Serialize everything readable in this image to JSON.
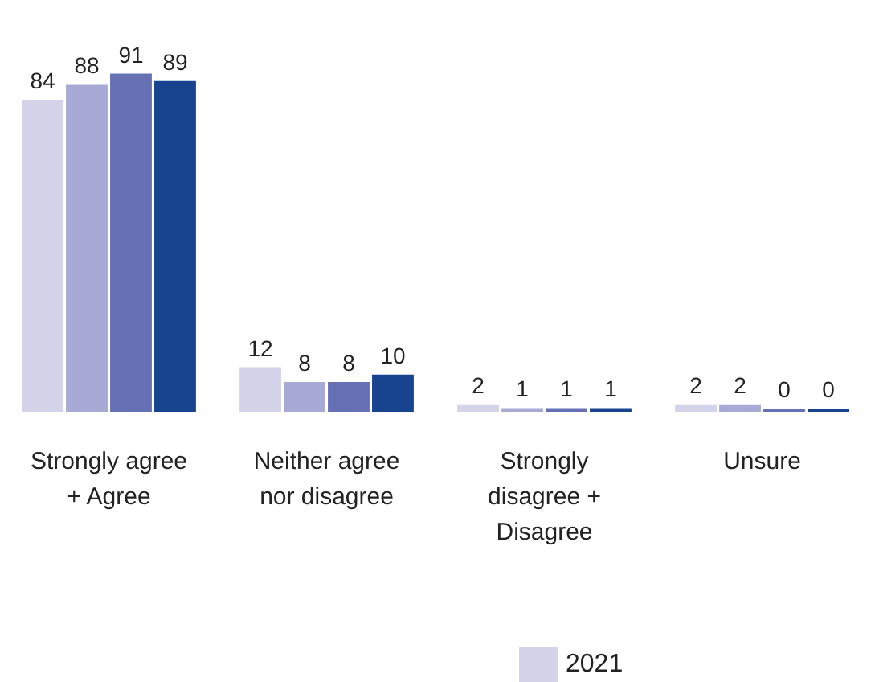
{
  "chart_data": {
    "type": "bar",
    "categories": [
      "Strongly agree\n+ Agree",
      "Neither agree\nnor disagree",
      "Strongly\ndisagree +\nDisagree",
      "Unsure"
    ],
    "series": [
      {
        "name": "2021",
        "color": "#d3d3ea",
        "values": [
          84,
          12,
          2,
          2
        ]
      },
      {
        "color": "#a7aad5",
        "values": [
          88,
          8,
          1,
          2
        ]
      },
      {
        "color": "#6571b4",
        "values": [
          91,
          8,
          1,
          0
        ]
      },
      {
        "color": "#17438f",
        "values": [
          89,
          10,
          1,
          0
        ]
      }
    ],
    "data_labels": true,
    "legend": "bottom",
    "grid": false
  }
}
